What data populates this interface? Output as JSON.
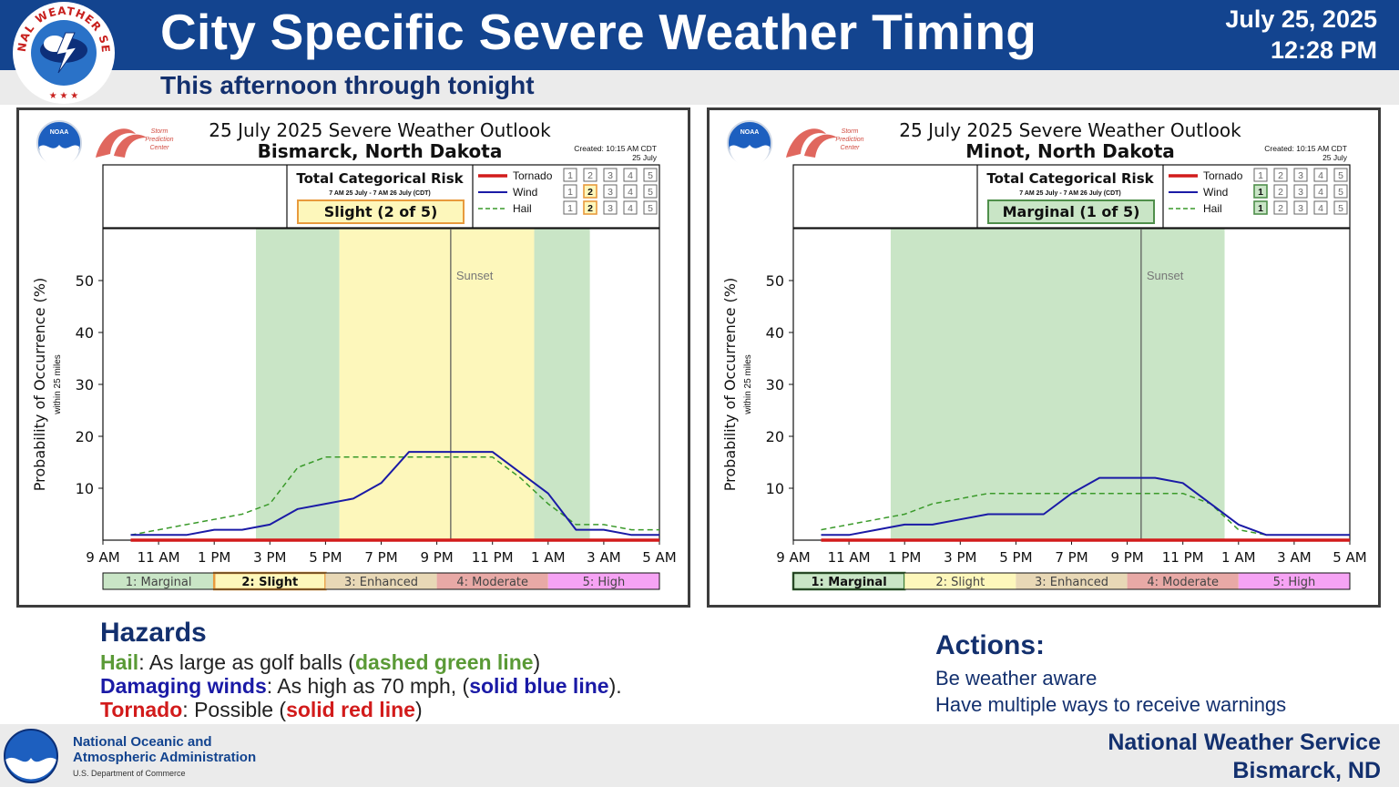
{
  "header": {
    "title": "City Specific Severe Weather Timing",
    "subtitle": "This afternoon through tonight",
    "date": "July 25, 2025",
    "time": "12:28 PM",
    "logo_text": "NATIONAL WEATHER SERVICE"
  },
  "risk_legend": [
    "1: Marginal",
    "2: Slight",
    "3: Enhanced",
    "4: Moderate",
    "5: High"
  ],
  "risk_colors": [
    "#c9e5c6",
    "#fdf7bb",
    "#e8d8b6",
    "#e8a9a6",
    "#f6a3f4"
  ],
  "series_colors": {
    "tornado": "#d21b1b",
    "wind": "#1a1aa6",
    "hail": "#3a9a2a"
  },
  "panel_text": {
    "outlook_title": "25 July 2025 Severe Weather Outlook",
    "created": "Created: 10:15 AM CDT",
    "created_date": "25 July",
    "risk_header": "Total Categorical Risk",
    "risk_period": "7 AM 25 July - 7 AM 26 July (CDT)",
    "sunset_label": "Sunset",
    "ylabel": "Probability of Occurrence (%)",
    "ylabel_sub": "within 25 miles",
    "spc_text": [
      "Storm",
      "Prediction",
      "Center"
    ],
    "noaa_badge": "NOAA",
    "legend_numbers": [
      "1",
      "2",
      "3",
      "4",
      "5"
    ]
  },
  "chart_data": [
    {
      "type": "line",
      "title": "25 July 2025 Severe Weather Outlook",
      "subtitle": "Bismarck, North Dakota",
      "risk_label": "Slight (2 of 5)",
      "risk_level": 2,
      "hazard_levels": {
        "tornado": 0,
        "wind": 2,
        "hail": 2
      },
      "ylabel": "Probability of Occurrence (%)",
      "ylim": [
        0,
        60
      ],
      "xlim": [
        "9 AM",
        "5 AM"
      ],
      "x_ticks": [
        "9 AM",
        "11 AM",
        "1 PM",
        "3 PM",
        "5 PM",
        "7 PM",
        "9 PM",
        "11 PM",
        "1 AM",
        "3 AM",
        "5 AM"
      ],
      "y_ticks": [
        10,
        20,
        30,
        40,
        50
      ],
      "sunset": "9:30 PM",
      "risk_shading": [
        {
          "start": "2:30 PM",
          "end": "5:30 PM",
          "level": 1
        },
        {
          "start": "5:30 PM",
          "end": "12:30 AM",
          "level": 2
        },
        {
          "start": "12:30 AM",
          "end": "2:30 AM",
          "level": 1
        }
      ],
      "x": [
        "10 AM",
        "11 AM",
        "12 PM",
        "1 PM",
        "2 PM",
        "3 PM",
        "4 PM",
        "5 PM",
        "6 PM",
        "7 PM",
        "8 PM",
        "9 PM",
        "10 PM",
        "11 PM",
        "12 AM",
        "1 AM",
        "2 AM",
        "3 AM",
        "4 AM",
        "5 AM"
      ],
      "series": [
        {
          "name": "Tornado",
          "values": [
            0,
            0,
            0,
            0,
            0,
            0,
            0,
            0,
            0,
            0,
            0,
            0,
            0,
            0,
            0,
            0,
            0,
            0,
            0,
            0
          ]
        },
        {
          "name": "Wind",
          "values": [
            1,
            1,
            1,
            2,
            2,
            3,
            6,
            7,
            8,
            11,
            17,
            17,
            17,
            17,
            13,
            9,
            2,
            2,
            1,
            1
          ]
        },
        {
          "name": "Hail",
          "values": [
            1,
            2,
            3,
            4,
            5,
            7,
            14,
            16,
            16,
            16,
            16,
            16,
            16,
            16,
            12,
            7,
            3,
            3,
            2,
            2
          ]
        }
      ]
    },
    {
      "type": "line",
      "title": "25 July 2025 Severe Weather Outlook",
      "subtitle": "Minot, North Dakota",
      "risk_label": "Marginal (1 of 5)",
      "risk_level": 1,
      "hazard_levels": {
        "tornado": 0,
        "wind": 1,
        "hail": 1
      },
      "ylabel": "Probability of Occurrence (%)",
      "ylim": [
        0,
        60
      ],
      "xlim": [
        "9 AM",
        "5 AM"
      ],
      "x_ticks": [
        "9 AM",
        "11 AM",
        "1 PM",
        "3 PM",
        "5 PM",
        "7 PM",
        "9 PM",
        "11 PM",
        "1 AM",
        "3 AM",
        "5 AM"
      ],
      "y_ticks": [
        10,
        20,
        30,
        40,
        50
      ],
      "sunset": "9:30 PM",
      "risk_shading": [
        {
          "start": "12:30 PM",
          "end": "12:30 AM",
          "level": 1
        }
      ],
      "x": [
        "10 AM",
        "11 AM",
        "12 PM",
        "1 PM",
        "2 PM",
        "3 PM",
        "4 PM",
        "5 PM",
        "6 PM",
        "7 PM",
        "8 PM",
        "9 PM",
        "10 PM",
        "11 PM",
        "12 AM",
        "1 AM",
        "2 AM",
        "3 AM",
        "4 AM",
        "5 AM"
      ],
      "series": [
        {
          "name": "Tornado",
          "values": [
            0,
            0,
            0,
            0,
            0,
            0,
            0,
            0,
            0,
            0,
            0,
            0,
            0,
            0,
            0,
            0,
            0,
            0,
            0,
            0
          ]
        },
        {
          "name": "Wind",
          "values": [
            1,
            1,
            2,
            3,
            3,
            4,
            5,
            5,
            5,
            9,
            12,
            12,
            12,
            11,
            7,
            3,
            1,
            1,
            1,
            1
          ]
        },
        {
          "name": "Hail",
          "values": [
            2,
            3,
            4,
            5,
            7,
            8,
            9,
            9,
            9,
            9,
            9,
            9,
            9,
            9,
            7,
            2,
            1,
            1,
            1,
            1
          ]
        }
      ]
    }
  ],
  "hazards": {
    "heading": "Hazards",
    "hail_label": "Hail",
    "hail_text": ": As large as golf balls (",
    "hail_line": "dashed green line",
    "hail_end": ")",
    "wind_label": "Damaging winds",
    "wind_text": ": As high as 70 mph, (",
    "wind_line": "solid blue line",
    "wind_end": ").",
    "tornado_label": "Tornado",
    "tornado_text": ": Possible (",
    "tornado_line": "solid red line",
    "tornado_end": ")"
  },
  "actions": {
    "heading": "Actions:",
    "items": [
      "Be weather aware",
      "Have multiple ways to receive warnings"
    ]
  },
  "footer": {
    "noaa_line1": "National Oceanic and",
    "noaa_line2": "Atmospheric Administration",
    "noaa_dept": "U.S. Department of Commerce",
    "office_line1": "National Weather Service",
    "office_line2": "Bismarck, ND"
  }
}
